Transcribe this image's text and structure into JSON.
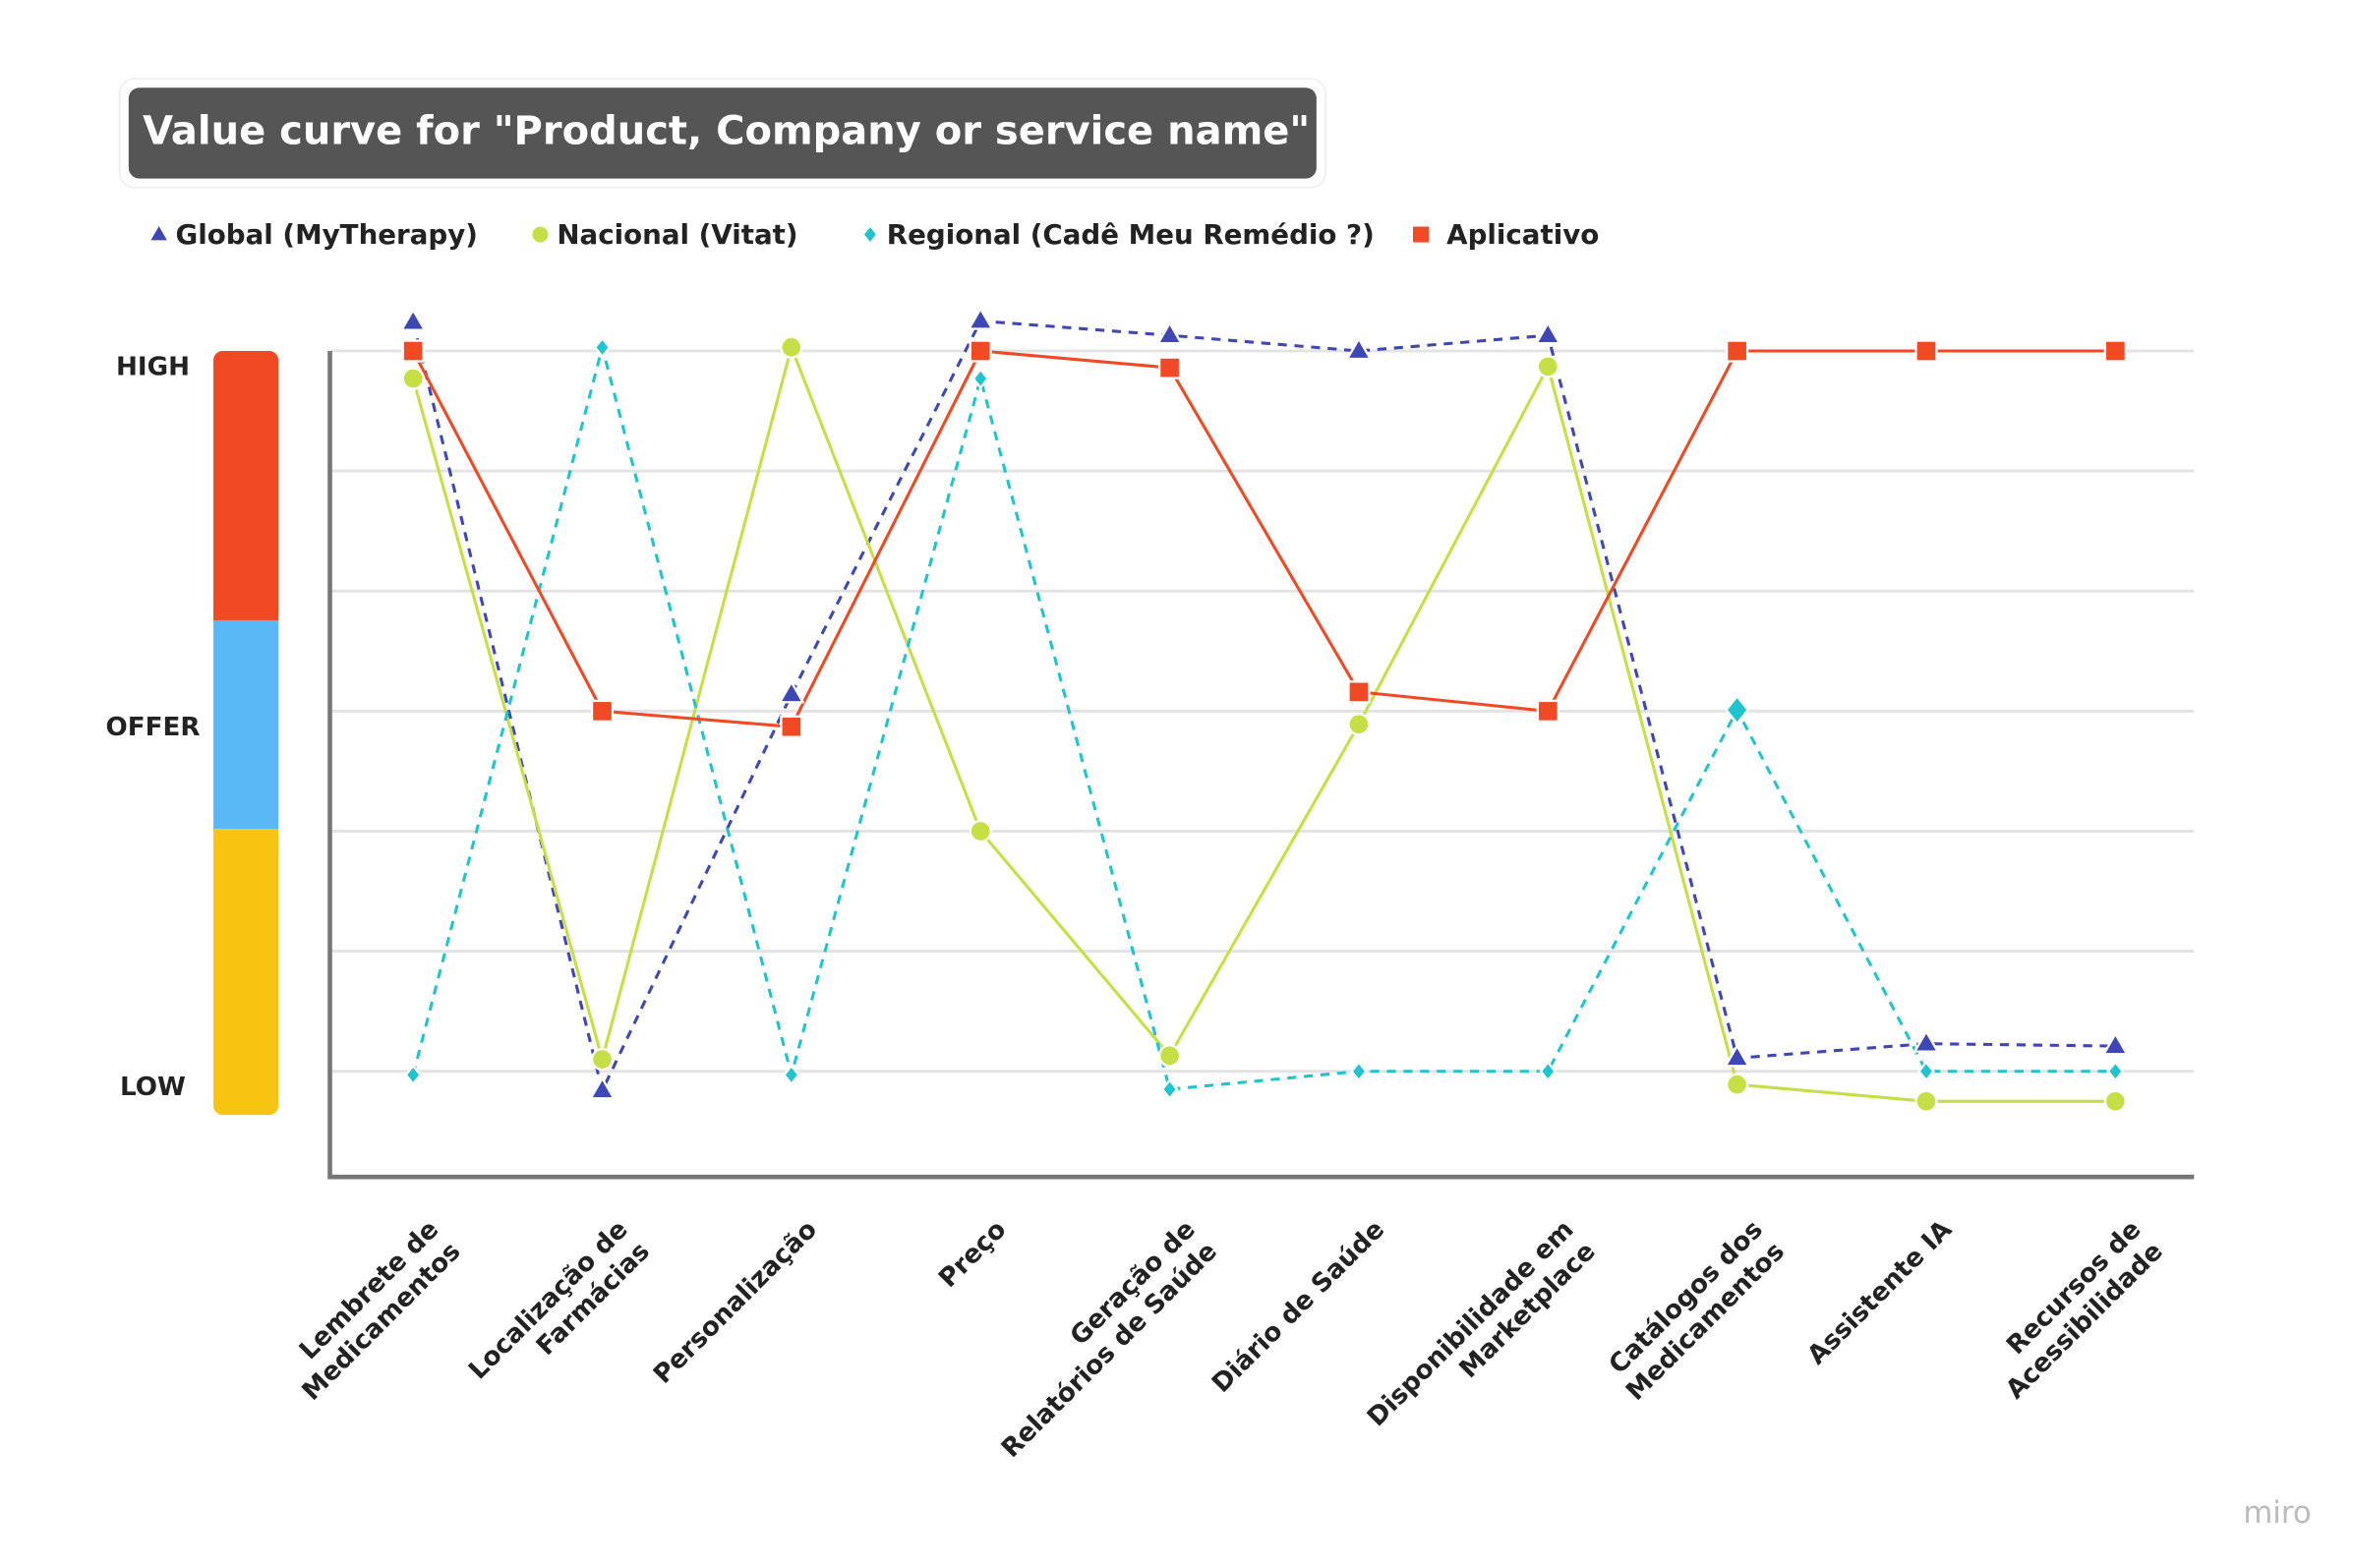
{
  "chart_data": {
    "type": "line",
    "title": "Value curve for \"Product, Company or service name\"",
    "categories": [
      "Lembrete de\nMedicamentos",
      "Localização de\nFarmácias",
      "Personalização",
      "Preço",
      "Geração de\nRelatórios de Saúde",
      "Diário de Saúde",
      "Disponibilidade em\nMarketplace",
      "Catálogos dos\nMedicamentos",
      "Assistente IA",
      "Recursos de\nAcessibilidade"
    ],
    "ylim": [
      -0.88,
      6
    ],
    "yticks": [
      {
        "value": 0,
        "label": "LOW"
      },
      {
        "value": 1,
        "label": null
      },
      {
        "value": 2,
        "label": null
      },
      {
        "value": 3,
        "label": "OFFER"
      },
      {
        "value": 4,
        "label": null
      },
      {
        "value": 5,
        "label": null
      },
      {
        "value": 6,
        "label": "HIGH"
      }
    ],
    "grid": true,
    "series": [
      {
        "name": "Global (MyTherapy)",
        "color": "#3d47b5",
        "marker": "triangle",
        "dashed": true,
        "values": [
          6.24,
          -0.16,
          3.14,
          6.25,
          6.13,
          6.0,
          6.13,
          0.11,
          0.23,
          0.21
        ]
      },
      {
        "name": "Nacional (Vitat)",
        "color": "#c5df45",
        "marker": "circle",
        "dashed": false,
        "values": [
          5.77,
          0.1,
          6.03,
          2.0,
          0.13,
          2.89,
          5.87,
          -0.11,
          -0.25,
          -0.25
        ]
      },
      {
        "name": "Regional (Cadê Meu Remédio ?)",
        "color": "#1fc4cf",
        "marker": "diamond",
        "dashed": true,
        "values": [
          -0.03,
          6.03,
          -0.03,
          5.77,
          -0.15,
          0.0,
          0.0,
          3.01,
          0.0,
          0.0
        ]
      },
      {
        "name": "Aplicativo",
        "color": "#f04923",
        "marker": "square",
        "dashed": false,
        "values": [
          6.0,
          3.0,
          2.87,
          6.0,
          5.86,
          3.16,
          3.0,
          6.0,
          6.0,
          6.0
        ]
      }
    ],
    "watermark": "miro"
  }
}
